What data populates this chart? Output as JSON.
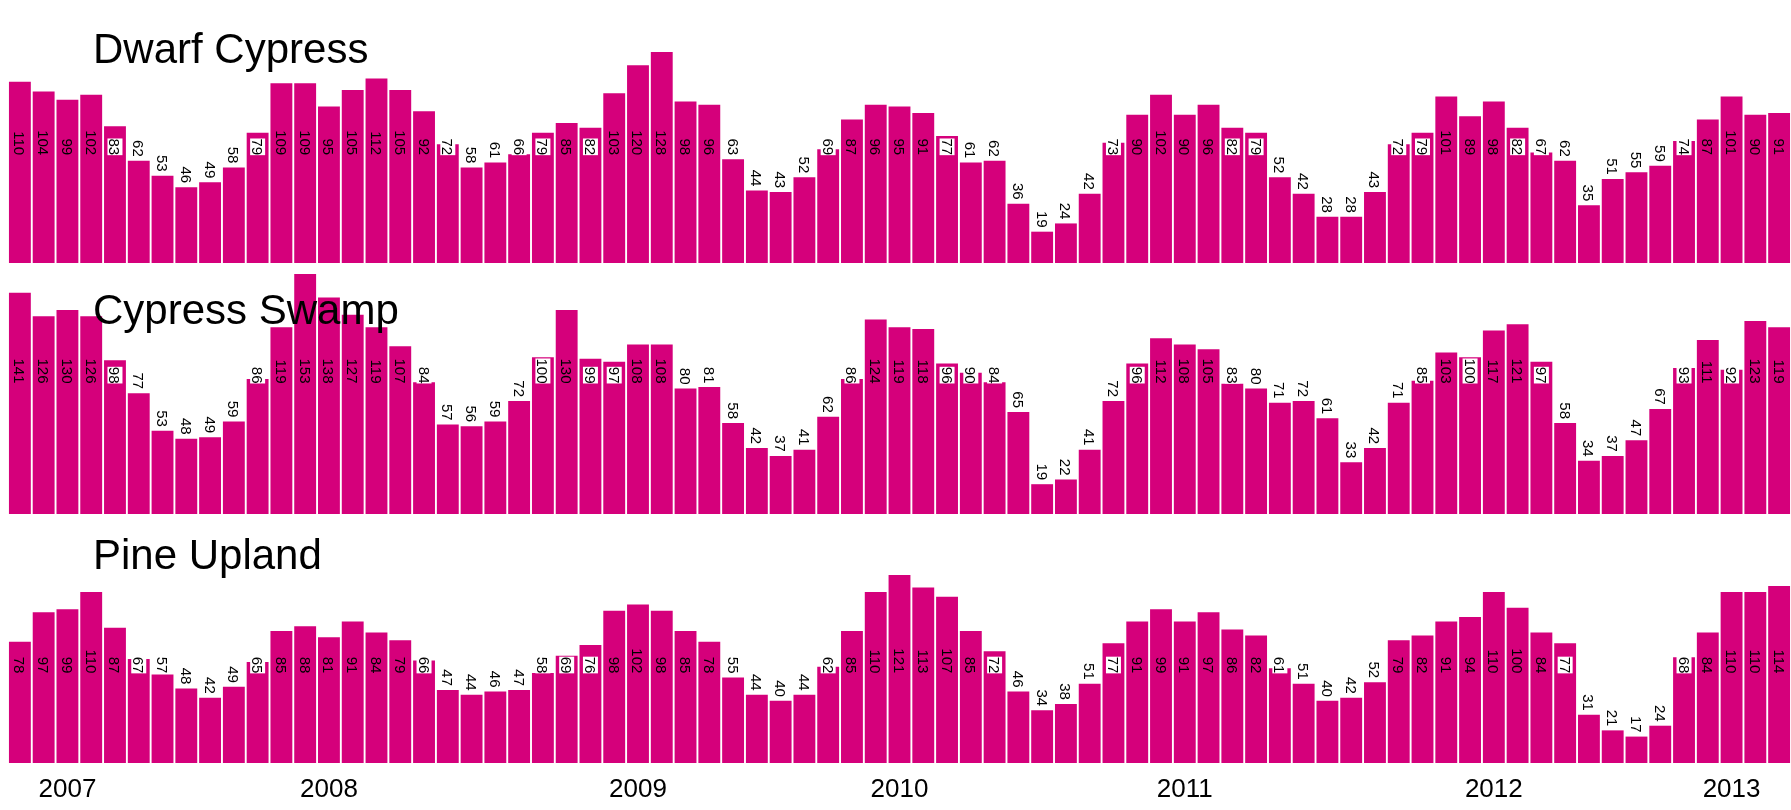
{
  "chart_data": [
    {
      "type": "bar",
      "title": "Dwarf Cypress",
      "color": "#d5007b",
      "data_labels": true,
      "tick_labels": false,
      "categories": [
        null,
        null,
        "2007",
        null,
        null,
        null,
        null,
        null,
        null,
        null,
        null,
        null,
        null,
        "2008",
        null,
        null,
        null,
        null,
        null,
        null,
        null,
        null,
        null,
        null,
        null,
        null,
        "2009",
        null,
        null,
        null,
        null,
        null,
        null,
        null,
        null,
        null,
        null,
        "2010",
        null,
        null,
        null,
        null,
        null,
        null,
        null,
        null,
        null,
        null,
        null,
        "2011",
        null,
        null,
        null,
        null,
        null,
        null,
        null,
        null,
        null,
        null,
        null,
        null,
        "2012",
        null,
        null,
        null,
        null,
        null,
        null,
        null,
        null,
        null,
        "2013",
        null,
        null
      ],
      "values": [
        110,
        104,
        99,
        102,
        83,
        62,
        53,
        46,
        49,
        58,
        79,
        109,
        109,
        95,
        105,
        112,
        105,
        92,
        72,
        58,
        61,
        66,
        79,
        85,
        82,
        103,
        120,
        128,
        98,
        96,
        63,
        44,
        43,
        52,
        69,
        87,
        96,
        95,
        91,
        77,
        61,
        62,
        36,
        19,
        24,
        42,
        73,
        90,
        102,
        90,
        96,
        82,
        79,
        52,
        42,
        28,
        28,
        43,
        72,
        79,
        101,
        89,
        98,
        82,
        67,
        62,
        35,
        51,
        55,
        59,
        74,
        87,
        101,
        90,
        91
      ]
    },
    {
      "type": "bar",
      "title": "Cypress Swamp",
      "color": "#d5007b",
      "data_labels": true,
      "tick_labels": false,
      "categories": [
        null,
        null,
        "2007",
        null,
        null,
        null,
        null,
        null,
        null,
        null,
        null,
        null,
        null,
        "2008",
        null,
        null,
        null,
        null,
        null,
        null,
        null,
        null,
        null,
        null,
        null,
        null,
        "2009",
        null,
        null,
        null,
        null,
        null,
        null,
        null,
        null,
        null,
        null,
        "2010",
        null,
        null,
        null,
        null,
        null,
        null,
        null,
        null,
        null,
        null,
        null,
        "2011",
        null,
        null,
        null,
        null,
        null,
        null,
        null,
        null,
        null,
        null,
        null,
        null,
        "2012",
        null,
        null,
        null,
        null,
        null,
        null,
        null,
        null,
        null,
        "2013",
        null,
        null
      ],
      "values": [
        141,
        126,
        130,
        126,
        98,
        77,
        53,
        48,
        49,
        59,
        86,
        119,
        153,
        138,
        127,
        119,
        107,
        84,
        57,
        56,
        59,
        72,
        100,
        130,
        99,
        97,
        108,
        108,
        80,
        81,
        58,
        42,
        37,
        41,
        62,
        86,
        124,
        119,
        118,
        96,
        90,
        84,
        65,
        19,
        22,
        41,
        72,
        96,
        112,
        108,
        105,
        83,
        80,
        71,
        72,
        61,
        33,
        42,
        71,
        85,
        103,
        100,
        117,
        121,
        97,
        58,
        34,
        37,
        47,
        67,
        93,
        111,
        92,
        123,
        119
      ]
    },
    {
      "type": "bar",
      "title": "Pine Upland",
      "color": "#d5007b",
      "data_labels": true,
      "tick_labels": "x",
      "categories": [
        null,
        null,
        "2007",
        null,
        null,
        null,
        null,
        null,
        null,
        null,
        null,
        null,
        null,
        "2008",
        null,
        null,
        null,
        null,
        null,
        null,
        null,
        null,
        null,
        null,
        null,
        null,
        "2009",
        null,
        null,
        null,
        null,
        null,
        null,
        null,
        null,
        null,
        null,
        "2010",
        null,
        null,
        null,
        null,
        null,
        null,
        null,
        null,
        null,
        null,
        null,
        "2011",
        null,
        null,
        null,
        null,
        null,
        null,
        null,
        null,
        null,
        null,
        null,
        null,
        "2012",
        null,
        null,
        null,
        null,
        null,
        null,
        null,
        null,
        null,
        "2013",
        null,
        null
      ],
      "values": [
        78,
        97,
        99,
        110,
        87,
        67,
        57,
        48,
        42,
        49,
        65,
        85,
        88,
        81,
        91,
        84,
        79,
        66,
        47,
        44,
        46,
        47,
        58,
        69,
        76,
        98,
        102,
        98,
        85,
        78,
        55,
        44,
        40,
        44,
        62,
        85,
        110,
        121,
        113,
        107,
        85,
        72,
        46,
        34,
        38,
        51,
        77,
        91,
        99,
        91,
        97,
        86,
        82,
        61,
        51,
        40,
        42,
        52,
        79,
        82,
        91,
        94,
        110,
        100,
        84,
        77,
        31,
        21,
        17,
        24,
        68,
        84,
        110,
        110,
        114
      ]
    }
  ]
}
